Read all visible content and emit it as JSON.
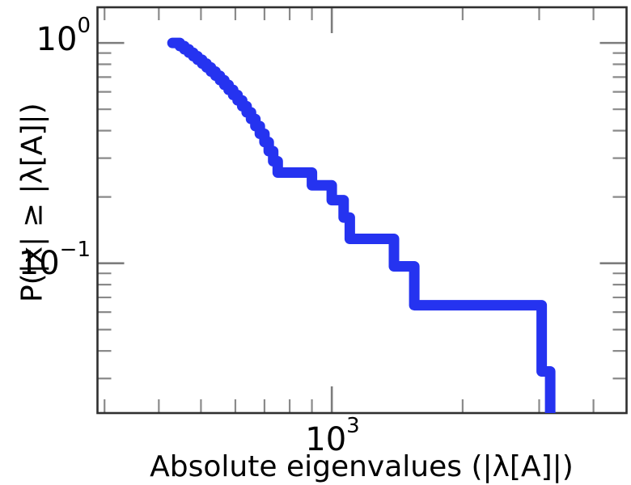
{
  "figure": {
    "background_color": "#ffffff",
    "text_color": "#000000",
    "spine_color": "#2f2f2f",
    "tick_color": "#7d7d7d"
  },
  "labels": {
    "xlabel": "Absolute eigenvalues (|λ[A]|)",
    "ylabel": "P(|x| ≥ |λ[A]|)",
    "x_tick": {
      "base": "10",
      "exp": "3"
    },
    "y_tick_top": {
      "base": "10",
      "exp": "0"
    },
    "y_tick_bottom": {
      "base": "10",
      "exp": "−1"
    }
  },
  "chart_data": {
    "type": "line",
    "style": "step-post",
    "description": "Empirical complementary CDF of absolute eigenvalues on log-log axes",
    "xscale": "log",
    "yscale": "log",
    "title": "",
    "xlabel": "Absolute eigenvalues (|λ[A]|)",
    "ylabel": "P(|x| ≥ |λ[A]|)",
    "xlim": [
      289,
      4766
    ],
    "ylim": [
      0.0209,
      1.464
    ],
    "grid": false,
    "legend": "none",
    "x_major_ticks": [
      1000
    ],
    "x_minor_ticks": [
      300,
      400,
      500,
      600,
      700,
      800,
      900,
      2000,
      3000,
      4000
    ],
    "y_major_ticks": [
      1,
      0.1
    ],
    "y_minor_ticks": [
      0.9,
      0.8,
      0.7,
      0.6,
      0.5,
      0.4,
      0.3,
      0.2,
      0.09,
      0.08,
      0.07,
      0.06,
      0.05,
      0.04,
      0.03
    ],
    "series": [
      {
        "name": "eigenvalue-ccdf",
        "color": "#2533f0",
        "line_width": 13,
        "n_points": 31,
        "x": [
          430,
          447,
          458,
          469,
          480,
          491,
          503,
          515,
          527,
          540,
          553,
          566,
          579,
          593,
          607,
          622,
          637,
          652,
          667,
          683,
          700,
          716,
          733,
          751,
          900,
          1000,
          1065,
          1100,
          1390,
          1548,
          3040,
          3180
        ],
        "p": [
          1.0,
          0.9677,
          0.9355,
          0.9032,
          0.871,
          0.8387,
          0.8065,
          0.7742,
          0.7419,
          0.7097,
          0.6774,
          0.6452,
          0.6129,
          0.5806,
          0.5484,
          0.5161,
          0.4839,
          0.4516,
          0.4194,
          0.3871,
          0.3548,
          0.3226,
          0.2903,
          0.2581,
          0.2258,
          0.1935,
          0.1613,
          0.129,
          0.0968,
          0.0645,
          0.0323,
          0
        ]
      }
    ]
  }
}
